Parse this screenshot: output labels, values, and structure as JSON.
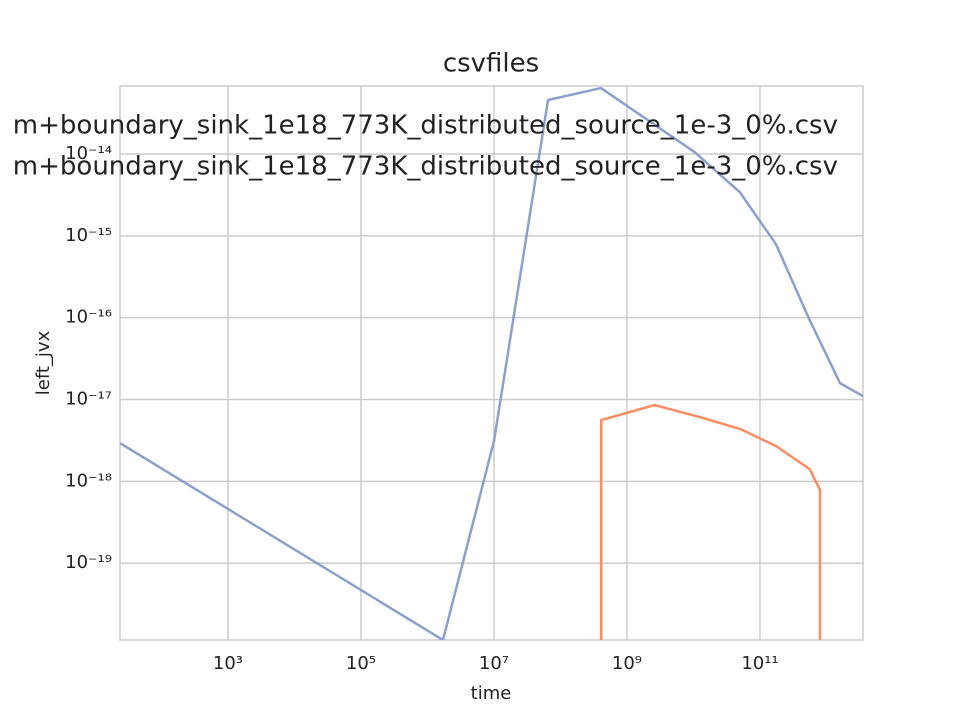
{
  "chart_data": {
    "type": "line",
    "title": "csvfiles",
    "xlabel": "time",
    "ylabel": "left_jvx",
    "xscale": "log",
    "yscale": "log",
    "grid": true,
    "xlim": [
      23.8,
      3540000000000.0
    ],
    "ylim": [
      1.15e-20,
      6.78e-14
    ],
    "xticks": [
      {
        "value": 1000.0,
        "label": "10³"
      },
      {
        "value": 100000.0,
        "label": "10⁵"
      },
      {
        "value": 10000000.0,
        "label": "10⁷"
      },
      {
        "value": 1000000000.0,
        "label": "10⁹"
      },
      {
        "value": 100000000000.0,
        "label": "10¹¹"
      }
    ],
    "yticks": [
      {
        "value": 1e-19,
        "label": "10⁻¹⁹"
      },
      {
        "value": 1e-18,
        "label": "10⁻¹⁸"
      },
      {
        "value": 1e-17,
        "label": "10⁻¹⁷"
      },
      {
        "value": 1e-16,
        "label": "10⁻¹⁶"
      },
      {
        "value": 1e-15,
        "label": "10⁻¹⁵"
      },
      {
        "value": 1e-14,
        "label": "10⁻¹⁴"
      }
    ],
    "series": [
      {
        "name": "m+boundary_sink_1e18_773K_distributed_source_1e-3_0%.csv",
        "color": "#8da0cb",
        "x": [
          23.8,
          1710000.0,
          10000000.0,
          65000000.0,
          406000000.0,
          10500000000.0,
          50000000000.0,
          174000000000.0,
          560000000000.0,
          1600000000000.0,
          3540000000000.0
        ],
        "values": [
          2.93e-18,
          1.15e-20,
          3.1e-18,
          4.57e-14,
          6.4e-14,
          1.05e-14,
          3.4e-15,
          7.9e-16,
          9.3e-17,
          1.58e-17,
          1.1e-17
        ]
      },
      {
        "name": "m+boundary_sink_1e18_773K_distributed_source_1e-3_0%.csv",
        "color": "#fc8d62",
        "x": [
          410000000.0,
          410000000.0,
          2600000000.0,
          12500000000.0,
          50000000000.0,
          174000000000.0,
          560000000000.0,
          800000000000.0,
          800000000000.0
        ],
        "values": [
          1e-21,
          5.6e-18,
          8.55e-18,
          6.1e-18,
          4.37e-18,
          2.7e-18,
          1.41e-18,
          7.8e-19,
          1e-21
        ]
      }
    ]
  }
}
